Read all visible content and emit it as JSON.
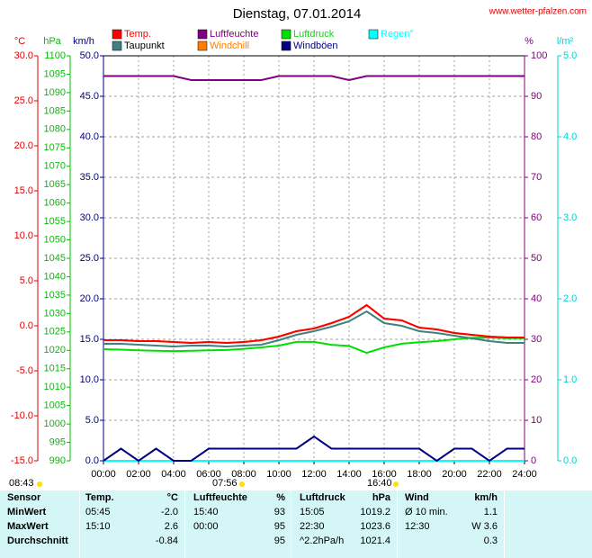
{
  "chart_data": {
    "type": "line",
    "title": "Dienstag, 07.01.2014",
    "site": "www.wetter-pfalzen.com",
    "annotations": [
      "08:43",
      "07:56",
      "16:40"
    ],
    "xlim": [
      0,
      24
    ],
    "xticks": [
      {
        "value": 0,
        "label": "00:00"
      },
      {
        "value": 2,
        "label": "02:00"
      },
      {
        "value": 4,
        "label": "04:00"
      },
      {
        "value": 6,
        "label": "06:00"
      },
      {
        "value": 8,
        "label": "08:00"
      },
      {
        "value": 10,
        "label": "10:00"
      },
      {
        "value": 12,
        "label": "12:00"
      },
      {
        "value": 14,
        "label": "14:00"
      },
      {
        "value": 16,
        "label": "16:00"
      },
      {
        "value": 18,
        "label": "18:00"
      },
      {
        "value": 20,
        "label": "20:00"
      },
      {
        "value": 22,
        "label": "22:00"
      },
      {
        "value": 24,
        "label": "24:00"
      }
    ],
    "grid": true,
    "axes": [
      {
        "label": "°C",
        "color": "#e00000",
        "lim": [
          -15,
          30
        ],
        "ticks": [
          {
            "value": -15,
            "label": "-15.0"
          },
          {
            "value": -10,
            "label": "-10.0"
          },
          {
            "value": -5,
            "label": "-5.0"
          },
          {
            "value": 0,
            "label": "0.0"
          },
          {
            "value": 5,
            "label": "5.0"
          },
          {
            "value": 10,
            "label": "10.0"
          },
          {
            "value": 15,
            "label": "15.0"
          },
          {
            "value": 20,
            "label": "20.0"
          },
          {
            "value": 25,
            "label": "25.0"
          },
          {
            "value": 30,
            "label": "30.0"
          }
        ]
      },
      {
        "label": "hPa",
        "color": "#00c000",
        "lim": [
          990,
          1100
        ],
        "ticks": [
          990,
          995,
          1000,
          1005,
          1010,
          1015,
          1020,
          1025,
          1030,
          1035,
          1040,
          1045,
          1050,
          1055,
          1060,
          1065,
          1070,
          1075,
          1080,
          1085,
          1090,
          1095,
          1100
        ]
      },
      {
        "label": "km/h",
        "color": "#000080",
        "lim": [
          0,
          50
        ],
        "ticks": [
          {
            "value": 0,
            "label": "0.0"
          },
          {
            "value": 5,
            "label": "5.0"
          },
          {
            "value": 10,
            "label": "10.0"
          },
          {
            "value": 15,
            "label": "15.0"
          },
          {
            "value": 20,
            "label": "20.0"
          },
          {
            "value": 25,
            "label": "25.0"
          },
          {
            "value": 30,
            "label": "30.0"
          },
          {
            "value": 35,
            "label": "35.0"
          },
          {
            "value": 40,
            "label": "40.0"
          },
          {
            "value": 45,
            "label": "45.0"
          },
          {
            "value": 50,
            "label": "50.0"
          }
        ]
      },
      {
        "label": "%",
        "color": "#800080",
        "lim": [
          0,
          100
        ],
        "ticks": [
          0,
          10,
          20,
          30,
          40,
          50,
          60,
          70,
          80,
          90,
          100
        ]
      },
      {
        "label": "l/m²",
        "color": "#00d0d0",
        "lim": [
          0,
          5
        ],
        "ticks": [
          {
            "value": 0,
            "label": "0.0"
          },
          {
            "value": 1,
            "label": "1.0"
          },
          {
            "value": 2,
            "label": "2.0"
          },
          {
            "value": 3,
            "label": "3.0"
          },
          {
            "value": 4,
            "label": "4.0"
          },
          {
            "value": 5,
            "label": "5.0"
          }
        ]
      }
    ],
    "x": [
      0,
      1,
      2,
      3,
      4,
      5,
      6,
      7,
      8,
      9,
      10,
      11,
      12,
      13,
      14,
      15,
      16,
      17,
      18,
      19,
      20,
      21,
      22,
      23,
      24
    ],
    "series": [
      {
        "name": "Temp.",
        "color": "#ff0000",
        "axis": 0,
        "values": [
          -1.6,
          -1.6,
          -1.7,
          -1.7,
          -1.8,
          -1.9,
          -1.8,
          -1.9,
          -1.8,
          -1.6,
          -1.2,
          -0.6,
          -0.3,
          0.3,
          1.0,
          2.3,
          0.8,
          0.6,
          -0.2,
          -0.4,
          -0.8,
          -1.0,
          -1.2,
          -1.3,
          -1.3
        ]
      },
      {
        "name": "Taupunkt",
        "color": "#408080",
        "axis": 0,
        "values": [
          -2.0,
          -2.0,
          -2.1,
          -2.2,
          -2.3,
          -2.2,
          -2.2,
          -2.3,
          -2.2,
          -2.1,
          -1.6,
          -1.0,
          -0.6,
          -0.1,
          0.5,
          1.6,
          0.3,
          0.0,
          -0.6,
          -0.8,
          -1.1,
          -1.4,
          -1.7,
          -1.9,
          -1.9
        ]
      },
      {
        "name": "Luftfeuchte",
        "color": "#800080",
        "axis": 3,
        "values": [
          95,
          95,
          95,
          95,
          95,
          94,
          94,
          94,
          94,
          94,
          95,
          95,
          95,
          95,
          94,
          95,
          95,
          95,
          95,
          95,
          95,
          95,
          95,
          95,
          95
        ]
      },
      {
        "name": "Windchill",
        "color": "#ff8000",
        "axis": 0,
        "values": [
          -1.6,
          -1.6,
          -1.7,
          -1.7,
          -1.8,
          -1.9,
          -1.8,
          -1.9,
          -1.8,
          -1.6,
          -1.2,
          -0.6,
          -0.3,
          0.3,
          1.0,
          2.3,
          0.8,
          0.6,
          -0.2,
          -0.4,
          -0.8,
          -1.0,
          -1.2,
          -1.3,
          -1.3
        ]
      },
      {
        "name": "Luftdruck",
        "color": "#00e000",
        "axis": 1,
        "values": [
          1020.3,
          1020.2,
          1020.0,
          1019.9,
          1019.8,
          1019.9,
          1020.0,
          1020.1,
          1020.4,
          1020.8,
          1021.3,
          1022.3,
          1022.3,
          1021.5,
          1021.2,
          1019.3,
          1020.8,
          1021.8,
          1022.2,
          1022.5,
          1023.0,
          1023.4,
          1023.5,
          1023.3,
          1023.3
        ]
      },
      {
        "name": "Windböen",
        "color": "#000080",
        "axis": 2,
        "values": [
          0,
          1.5,
          0,
          1.5,
          0,
          0,
          1.5,
          1.5,
          1.5,
          1.5,
          1.5,
          1.5,
          3.0,
          1.5,
          1.5,
          1.5,
          1.5,
          1.5,
          1.5,
          0,
          1.5,
          1.5,
          0,
          1.5,
          1.5
        ]
      },
      {
        "name": "Regen°",
        "color": "#00ffff",
        "axis": 4,
        "values": [
          0,
          0,
          0,
          0,
          0,
          0,
          0,
          0,
          0,
          0,
          0,
          0,
          0,
          0,
          0,
          0,
          0,
          0,
          0,
          0,
          0,
          0,
          0,
          0,
          0
        ]
      }
    ]
  },
  "table": {
    "header": [
      "Sensor",
      "Temp.",
      "°C",
      "Luftfeuchte",
      "%",
      "Luftdruck",
      "hPa",
      "Wind",
      "km/h"
    ],
    "rows": [
      [
        "MinWert",
        "05:45",
        "-2.0",
        "15:40",
        "93",
        "15:05",
        "1019.2",
        "Ø 10 min.",
        "1.1"
      ],
      [
        "MaxWert",
        "15:10",
        "2.6",
        "00:00",
        "95",
        "22:30",
        "1023.6",
        "12:30",
        "W 3.6"
      ],
      [
        "Durchschnitt",
        null,
        "-0.84",
        null,
        "95",
        "^2.2hPa/h",
        "1021.4",
        null,
        "0.3"
      ]
    ]
  }
}
